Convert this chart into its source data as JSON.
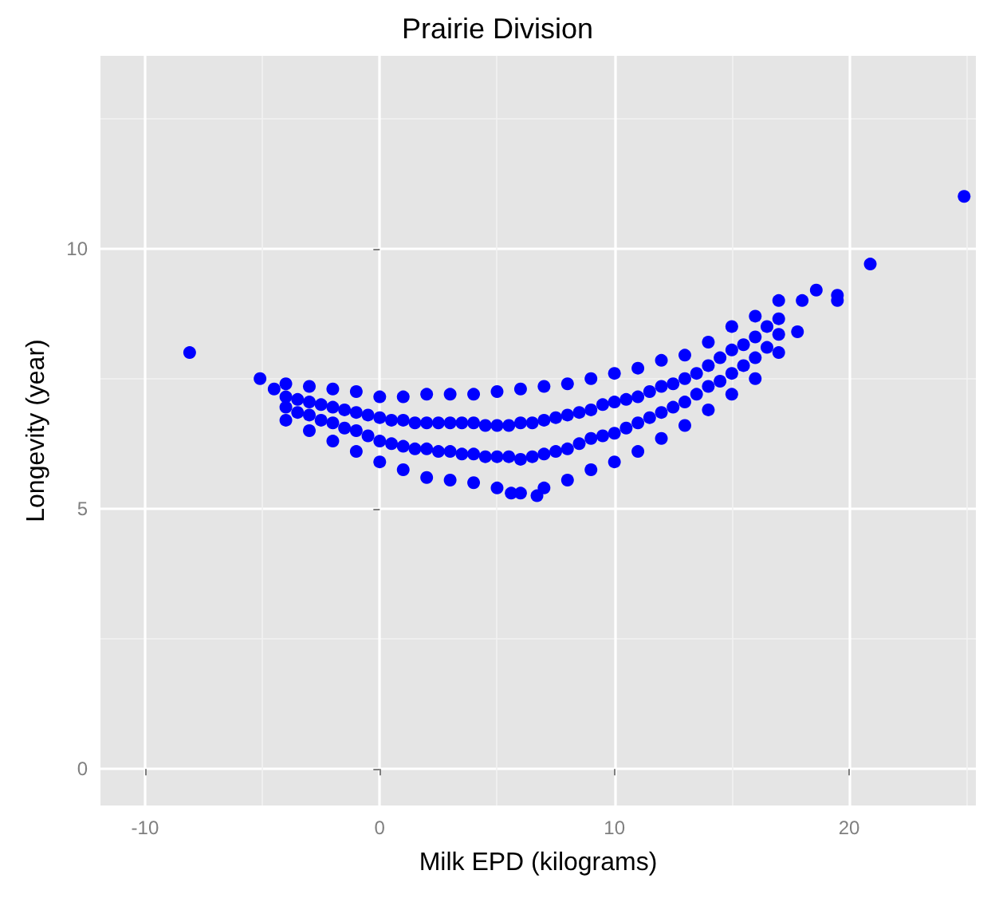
{
  "chart_data": {
    "type": "scatter",
    "title": "Prairie Division",
    "xlabel": "Milk EPD (kilograms)",
    "ylabel": "Longevity (year)",
    "xlim": [
      -11.9,
      25.4
    ],
    "ylim": [
      -0.7,
      13.7
    ],
    "xticks": [
      -10,
      {
        "value": -5,
        "label": null
      },
      0,
      {
        "value": 5,
        "label": null
      },
      10,
      {
        "value": 15,
        "label": null
      },
      20,
      {
        "value": 25,
        "label": null
      }
    ],
    "yticks": [
      0,
      {
        "value": 2.5,
        "label": null
      },
      5,
      {
        "value": 7.5,
        "label": null
      },
      10,
      {
        "value": 12.5,
        "label": null
      }
    ],
    "grid": true,
    "marker": "circle",
    "series": [
      {
        "color": "#0000ff",
        "x": [
          -8.1,
          -5.1,
          -4.5,
          -4,
          -4,
          -4,
          -4,
          -3,
          -3,
          -3,
          -3,
          -2,
          -2,
          -2,
          -2,
          -1,
          -1,
          -1,
          -1,
          0,
          0,
          0,
          0,
          1,
          1,
          1,
          1,
          2,
          2,
          2,
          2,
          3,
          3,
          3,
          3,
          4,
          4,
          4,
          4,
          5,
          5,
          5,
          5,
          6,
          6,
          6,
          6,
          7,
          7,
          7,
          7,
          8,
          8,
          8,
          8,
          9,
          9,
          9,
          9,
          10,
          10,
          10,
          10,
          11,
          11,
          11,
          11,
          12,
          12,
          12,
          12,
          13,
          13,
          13,
          13,
          14,
          14,
          14,
          14,
          15,
          15,
          15,
          15,
          16,
          16,
          16,
          16,
          17,
          17,
          17,
          17,
          -3.5,
          -3.5,
          -2.5,
          -2.5,
          -1.5,
          -1.5,
          -0.5,
          -0.5,
          0.5,
          0.5,
          1.5,
          1.5,
          2.5,
          2.5,
          3.5,
          3.5,
          4.5,
          4.5,
          5.5,
          5.5,
          6.5,
          6.5,
          7.5,
          7.5,
          8.5,
          8.5,
          9.5,
          9.5,
          10.5,
          10.5,
          11.5,
          11.5,
          12.5,
          12.5,
          13.5,
          13.5,
          14.5,
          14.5,
          15.5,
          15.5,
          16.5,
          16.5,
          6.7,
          5.6,
          17.8,
          18,
          18.6,
          19.5,
          19.5,
          20.9,
          24.9
        ],
        "values": [
          8.0,
          7.5,
          7.3,
          6.7,
          6.95,
          7.15,
          7.4,
          6.5,
          6.8,
          7.05,
          7.35,
          6.3,
          6.65,
          6.95,
          7.3,
          6.1,
          6.5,
          6.85,
          7.25,
          5.9,
          6.3,
          6.75,
          7.15,
          5.75,
          6.2,
          6.7,
          7.15,
          5.6,
          6.15,
          6.65,
          7.2,
          5.55,
          6.1,
          6.65,
          7.2,
          5.5,
          6.05,
          6.65,
          7.2,
          5.4,
          6.0,
          6.6,
          7.25,
          5.3,
          5.95,
          6.65,
          7.3,
          5.4,
          6.05,
          6.7,
          7.35,
          5.55,
          6.15,
          6.8,
          7.4,
          5.75,
          6.35,
          6.9,
          7.5,
          5.9,
          6.45,
          7.05,
          7.6,
          6.1,
          6.65,
          7.15,
          7.7,
          6.35,
          6.85,
          7.35,
          7.85,
          6.6,
          7.05,
          7.5,
          7.95,
          6.9,
          7.35,
          7.75,
          8.2,
          7.2,
          7.6,
          8.05,
          8.5,
          7.5,
          7.9,
          8.3,
          8.7,
          8.0,
          8.35,
          8.65,
          9.0,
          6.85,
          7.1,
          6.7,
          7.0,
          6.55,
          6.9,
          6.4,
          6.8,
          6.25,
          6.7,
          6.15,
          6.65,
          6.1,
          6.65,
          6.05,
          6.65,
          6.0,
          6.6,
          6.0,
          6.6,
          6.0,
          6.65,
          6.1,
          6.75,
          6.25,
          6.85,
          6.4,
          7.0,
          6.55,
          7.1,
          6.75,
          7.25,
          6.95,
          7.4,
          7.2,
          7.6,
          7.45,
          7.9,
          7.75,
          8.15,
          8.1,
          8.5,
          5.25,
          5.3,
          8.4,
          9.0,
          9.2,
          9.0,
          9.1,
          9.7,
          11.0
        ]
      }
    ]
  }
}
